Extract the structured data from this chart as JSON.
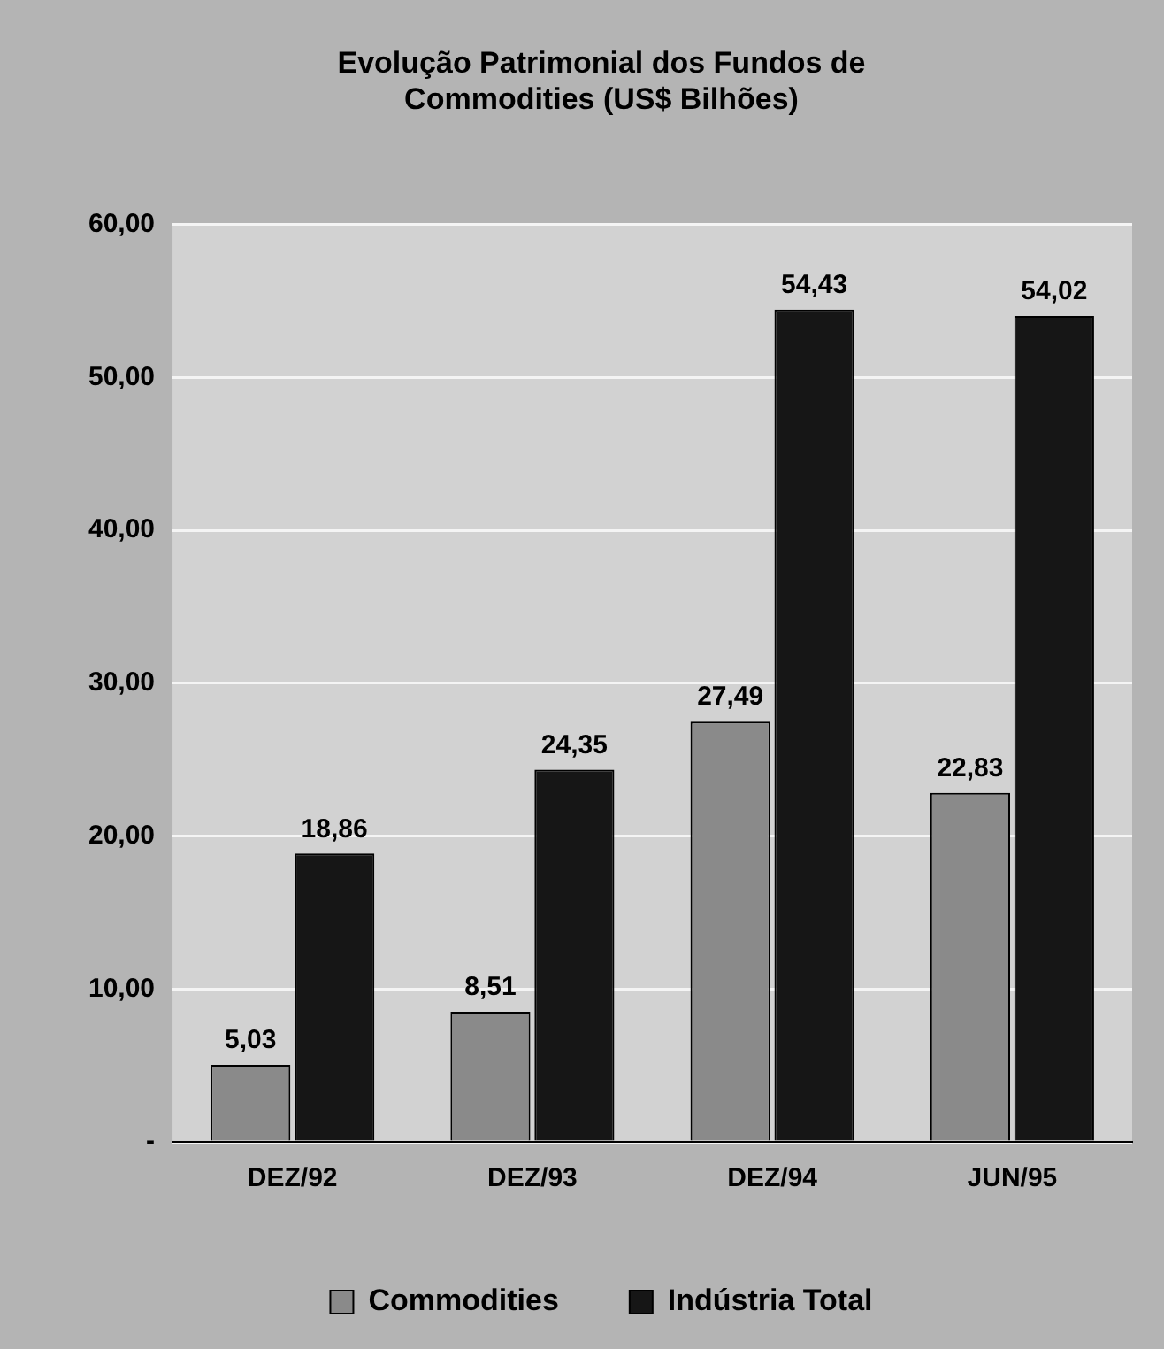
{
  "chart_data": {
    "type": "bar",
    "title": "Evolução Patrimonial dos Fundos de Commodities (US$ Bilhões)",
    "categories": [
      "DEZ/92",
      "DEZ/93",
      "DEZ/94",
      "JUN/95"
    ],
    "series": [
      {
        "name": "Commodities",
        "color": "#8a8a8a",
        "values": [
          5.03,
          8.51,
          27.49,
          22.83
        ],
        "value_labels": [
          "5,03",
          "8,51",
          "27,49",
          "22,83"
        ]
      },
      {
        "name": "Indústria Total",
        "color": "#161616",
        "values": [
          18.86,
          24.35,
          54.43,
          54.02
        ],
        "value_labels": [
          "18,86",
          "24,35",
          "54,43",
          "54,02"
        ]
      }
    ],
    "ylim": [
      0,
      60
    ],
    "yticks": [
      {
        "value": 0,
        "label": "-"
      },
      {
        "value": 10,
        "label": "10,00"
      },
      {
        "value": 20,
        "label": "20,00"
      },
      {
        "value": 30,
        "label": "30,00"
      },
      {
        "value": 40,
        "label": "40,00"
      },
      {
        "value": 50,
        "label": "50,00"
      },
      {
        "value": 60,
        "label": "60,00"
      }
    ],
    "grid": "y",
    "legend": "bottom"
  }
}
